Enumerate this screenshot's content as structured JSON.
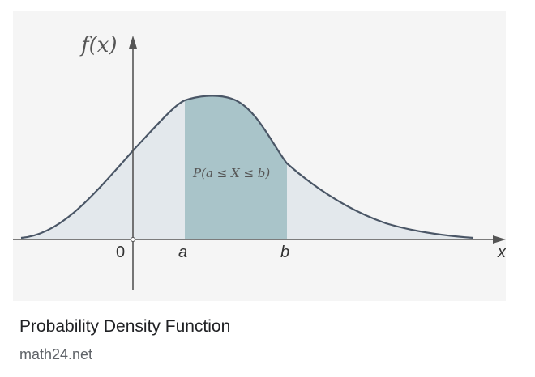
{
  "result": {
    "title": "Probability Density Function",
    "source": "math24.net"
  },
  "figure": {
    "y_axis_label": "f(x)",
    "x_axis_label": "x",
    "origin_label": "0",
    "a_label": "a",
    "b_label": "b",
    "area_label": "P(a ≤ X ≤ b)",
    "colors": {
      "background": "#f5f5f5",
      "tail_fill": "#e3e8ec",
      "interval_fill": "#a9c4c9",
      "curve": "#4a5666",
      "axis": "#555555"
    }
  }
}
